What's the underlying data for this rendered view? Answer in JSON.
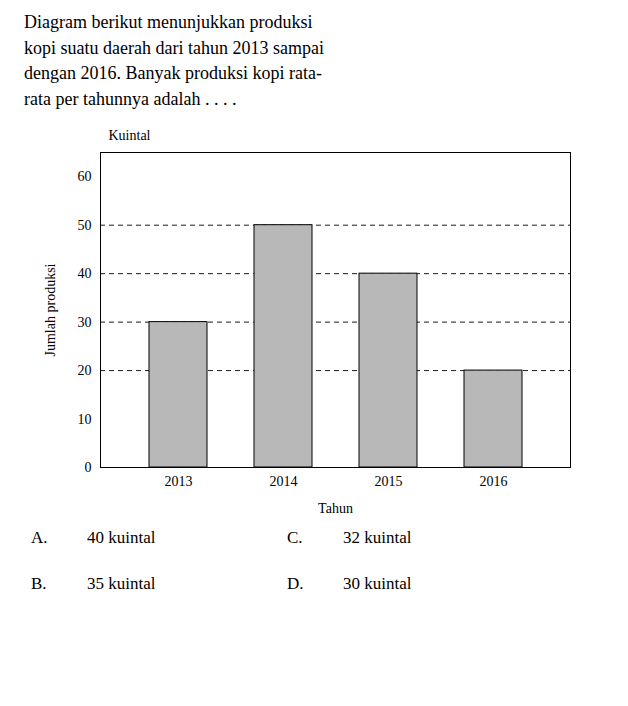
{
  "chart_data": {
    "type": "bar",
    "title": [
      "Diagram berikut menunjukkan produksi",
      "kopi suatu daerah dari tahun 2013 sampai",
      "dengan 2016. Banyak produksi kopi rata-",
      "rata per tahunnya adalah . . . ."
    ],
    "categories": [
      "2013",
      "2014",
      "2015",
      "2016"
    ],
    "values": [
      30,
      50,
      40,
      20
    ],
    "color": "#b8b8b8",
    "xlabel": "Tahun",
    "ylabel": "Jumlah produksi",
    "ylabel_top": "Kuintal",
    "ylim": [
      0,
      65
    ],
    "yticks": [
      0,
      10,
      20,
      30,
      40,
      50,
      60
    ],
    "reference_lines": [
      20,
      30,
      40,
      50
    ],
    "annotations": [
      [
        "A.",
        "40 kuintal",
        "C.",
        "32 kuintal"
      ],
      [
        "B.",
        "35 kuintal",
        "D.",
        "30 kuintal"
      ]
    ]
  }
}
